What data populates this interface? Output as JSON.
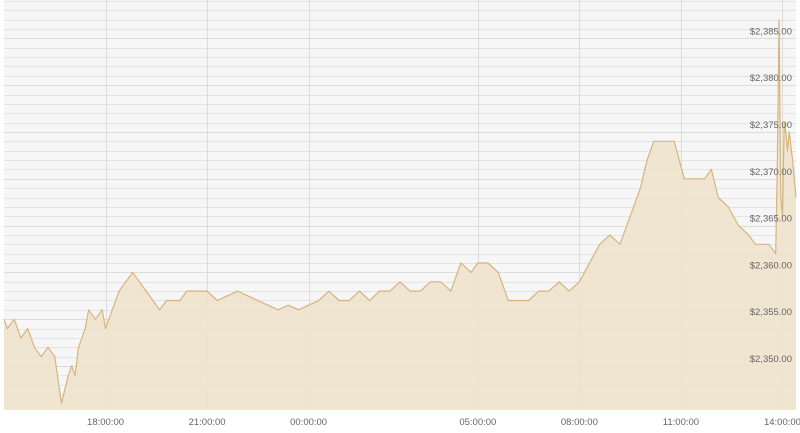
{
  "chart_data": {
    "type": "area",
    "title": "",
    "xlabel": "",
    "ylabel": "",
    "colors": {
      "fill": "#efe3cc",
      "line": "#d6b47e",
      "grid": "#e4e4e4",
      "plot_background": "#f6f6f6",
      "label": "#666666"
    },
    "grid": true,
    "x_range_hours": [
      15.0,
      38.4
    ],
    "ylim": [
      2345.3,
      2389.1
    ],
    "x_ticks": [
      {
        "h": 18,
        "label": "18:00:00"
      },
      {
        "h": 21,
        "label": "21:00:00"
      },
      {
        "h": 24,
        "label": "00:00:00"
      },
      {
        "h": 29,
        "label": "05:00:00"
      },
      {
        "h": 32,
        "label": "08:00:00"
      },
      {
        "h": 35,
        "label": "11:00:00"
      },
      {
        "h": 38,
        "label": "14:00:00"
      }
    ],
    "y_ticks": [
      {
        "v": 2350,
        "label": "$2,350.00"
      },
      {
        "v": 2355,
        "label": "$2,355.00"
      },
      {
        "v": 2360,
        "label": "$2,360.00"
      },
      {
        "v": 2365,
        "label": "$2,365.00"
      },
      {
        "v": 2370,
        "label": "$2,370.00"
      },
      {
        "v": 2375,
        "label": "$2,375.00"
      },
      {
        "v": 2380,
        "label": "$2,380.00"
      },
      {
        "v": 2385,
        "label": "$2,385.00"
      }
    ],
    "series": [
      {
        "x": [
          15.0,
          15.1,
          15.3,
          15.5,
          15.7,
          15.9,
          16.1,
          16.3,
          16.5,
          16.7,
          16.9,
          17.0,
          17.1,
          17.2,
          17.4,
          17.5,
          17.7,
          17.9,
          18.0,
          18.2,
          18.4,
          18.6,
          18.8,
          19.0,
          19.2,
          19.4,
          19.6,
          19.8,
          20.0,
          20.2,
          20.4,
          20.6,
          20.8,
          21.0,
          21.3,
          21.6,
          21.9,
          22.2,
          22.5,
          22.8,
          23.1,
          23.4,
          23.7,
          24.0,
          24.3,
          24.6,
          24.9,
          25.2,
          25.5,
          25.8,
          26.1,
          26.4,
          26.7,
          27.0,
          27.3,
          27.6,
          27.9,
          28.2,
          28.5,
          28.8,
          29.0,
          29.3,
          29.6,
          29.9,
          30.2,
          30.5,
          30.8,
          31.1,
          31.4,
          31.7,
          32.0,
          32.3,
          32.6,
          32.9,
          33.2,
          33.5,
          33.8,
          34.0,
          34.2,
          34.5,
          34.8,
          35.1,
          35.4,
          35.7,
          35.9,
          36.1,
          36.4,
          36.7,
          37.0,
          37.2,
          37.4,
          37.6,
          37.8,
          37.85,
          37.9,
          37.95,
          38.0,
          38.05,
          38.1,
          38.15,
          38.2,
          38.3,
          38.4
        ],
        "values": [
          2355,
          2354,
          2355,
          2353,
          2354,
          2352,
          2351,
          2352,
          2351,
          2346,
          2349,
          2350,
          2349,
          2352,
          2354,
          2356,
          2355,
          2356,
          2354,
          2356,
          2358,
          2359,
          2360,
          2359,
          2358,
          2357,
          2356,
          2357,
          2357,
          2357,
          2358,
          2358,
          2358,
          2358,
          2357,
          2357.5,
          2358,
          2357.5,
          2357,
          2356.5,
          2356,
          2356.5,
          2356,
          2356.5,
          2357,
          2358,
          2357,
          2357,
          2358,
          2357,
          2358,
          2358,
          2359,
          2358,
          2358,
          2359,
          2359,
          2358,
          2361,
          2360,
          2361,
          2361,
          2360,
          2357,
          2357,
          2357,
          2358,
          2358,
          2359,
          2358,
          2359,
          2361,
          2363,
          2364,
          2363,
          2366,
          2369,
          2372,
          2374,
          2374,
          2374,
          2370,
          2370,
          2370,
          2371,
          2368,
          2367,
          2365,
          2364,
          2363,
          2363,
          2363,
          2362,
          2372,
          2387,
          2368,
          2366,
          2376,
          2375,
          2373,
          2375,
          2372,
          2368
        ]
      }
    ]
  }
}
